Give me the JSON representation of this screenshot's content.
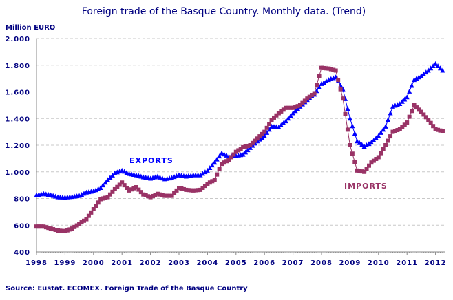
{
  "chart_data": {
    "type": "line",
    "title": "Foreign trade of the Basque Country. Monthly data. (Trend)",
    "ylabel": "Million EURO",
    "source": "Source: Eustat. ECOMEX. Foreign Trade of the Basque Country",
    "ylim": [
      400,
      2000
    ],
    "yticks": [
      400,
      600,
      800,
      1000,
      1200,
      1400,
      1600,
      1800,
      2000
    ],
    "ytick_labels": [
      "400",
      "600",
      "800",
      "1.000",
      "1.200",
      "1.400",
      "1.600",
      "1.800",
      "2.000"
    ],
    "xticks": [
      1998,
      1999,
      2000,
      2001,
      2002,
      2003,
      2004,
      2005,
      2006,
      2007,
      2008,
      2009,
      2010,
      2011,
      2012
    ],
    "grid": true,
    "x": [
      1998.0,
      1998.25,
      1998.5,
      1998.75,
      1999.0,
      1999.25,
      1999.5,
      1999.75,
      2000.0,
      2000.25,
      2000.5,
      2000.75,
      2001.0,
      2001.25,
      2001.5,
      2001.75,
      2002.0,
      2002.25,
      2002.5,
      2002.75,
      2003.0,
      2003.25,
      2003.5,
      2003.75,
      2004.0,
      2004.25,
      2004.5,
      2004.75,
      2005.0,
      2005.25,
      2005.5,
      2005.75,
      2006.0,
      2006.25,
      2006.5,
      2006.75,
      2007.0,
      2007.25,
      2007.5,
      2007.75,
      2008.0,
      2008.25,
      2008.5,
      2008.75,
      2009.0,
      2009.25,
      2009.5,
      2009.75,
      2010.0,
      2010.25,
      2010.5,
      2010.75,
      2011.0,
      2011.25,
      2011.5,
      2011.75,
      2012.0,
      2012.25
    ],
    "series": [
      {
        "name": "EXPORTS",
        "color": "#0000ff",
        "marker": "triangle",
        "values": [
          825,
          835,
          825,
          810,
          808,
          812,
          820,
          845,
          855,
          880,
          940,
          990,
          1010,
          985,
          975,
          960,
          950,
          965,
          945,
          955,
          975,
          965,
          975,
          975,
          1010,
          1070,
          1140,
          1115,
          1120,
          1130,
          1180,
          1230,
          1270,
          1340,
          1335,
          1380,
          1440,
          1490,
          1540,
          1580,
          1660,
          1690,
          1710,
          1620,
          1400,
          1230,
          1190,
          1220,
          1270,
          1340,
          1490,
          1510,
          1560,
          1690,
          1720,
          1760,
          1810,
          1760
        ]
      },
      {
        "name": "IMPORTS",
        "color": "#993366",
        "marker": "square",
        "values": [
          590,
          590,
          575,
          560,
          555,
          575,
          610,
          645,
          720,
          795,
          810,
          870,
          920,
          860,
          885,
          830,
          810,
          835,
          820,
          820,
          880,
          865,
          860,
          865,
          910,
          940,
          1060,
          1090,
          1150,
          1185,
          1200,
          1250,
          1300,
          1390,
          1440,
          1480,
          1480,
          1500,
          1550,
          1590,
          1780,
          1775,
          1760,
          1550,
          1200,
          1010,
          1000,
          1070,
          1110,
          1200,
          1300,
          1320,
          1370,
          1500,
          1450,
          1390,
          1320,
          1305
        ]
      }
    ]
  }
}
